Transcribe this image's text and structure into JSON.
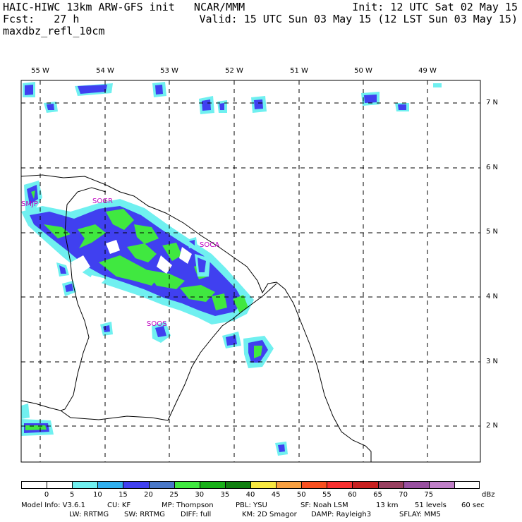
{
  "header": {
    "line1_left": "HAIC-HIWC 13km ARW-GFS init   NCAR/MMM",
    "line1_right": "Init: 12 UTC Sat 02 May 15",
    "line2_left": "Fcst:   27 h",
    "line2_right": "Valid: 15 UTC Sun 03 May 15 (12 LST Sun 03 May 15)",
    "line3_left": "maxdbz_refl_10cm"
  },
  "longitude_labels": [
    "55 W",
    "54 W",
    "53 W",
    "52 W",
    "51 W",
    "50 W",
    "49 W"
  ],
  "latitude_labels": [
    "7 N",
    "6 N",
    "5 N",
    "4 N",
    "3 N",
    "2 N"
  ],
  "stations": [
    {
      "id": "SMJP"
    },
    {
      "id": "SOGR"
    },
    {
      "id": "SOCA"
    },
    {
      "id": "SOOS"
    }
  ],
  "colorbar": {
    "ticks": [
      "0",
      "5",
      "10",
      "15",
      "20",
      "25",
      "30",
      "35",
      "40",
      "45",
      "50",
      "55",
      "60",
      "65",
      "70",
      "75"
    ],
    "unit": "dBz",
    "colors": [
      "#ffffff",
      "#ffffff",
      "#70f0f0",
      "#30b0f0",
      "#4040f0",
      "#4a78c8",
      "#40e840",
      "#18b018",
      "#108010",
      "#f8e840",
      "#f8a040",
      "#f85020",
      "#f83030",
      "#c82020",
      "#984060",
      "#9850a0",
      "#c080c8",
      "#ffffff"
    ]
  },
  "footer": {
    "line1": [
      "Model Info: V3.6.1",
      "CU: KF",
      "MP: Thompson",
      "PBL: YSU",
      "SF: Noah LSM",
      "13 km",
      "51 levels",
      "60 sec"
    ],
    "line2": [
      "LW: RRTMG",
      "SW: RRTMG",
      "DIFF: full",
      "KM: 2D Smagor",
      "DAMP: Rayleigh3",
      "SFLAY: MM5"
    ]
  }
}
